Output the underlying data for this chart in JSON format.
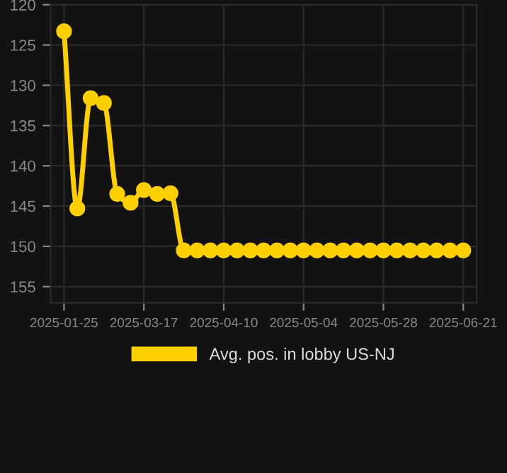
{
  "chart_data": {
    "type": "line",
    "categories": [
      "2025-01-25",
      null,
      null,
      null,
      null,
      null,
      "2025-03-17",
      null,
      null,
      null,
      null,
      null,
      "2025-04-10",
      null,
      null,
      null,
      null,
      null,
      "2025-05-04",
      null,
      null,
      null,
      null,
      null,
      "2025-05-28",
      null,
      null,
      null,
      null,
      null,
      "2025-06-21"
    ],
    "series": [
      {
        "name": "Avg. pos. in lobby US-NJ",
        "color": "#ffd000",
        "values": [
          123.3,
          145.3,
          131.6,
          132.2,
          143.5,
          144.6,
          143.0,
          143.5,
          143.4,
          150.5,
          150.5,
          150.5,
          150.5,
          150.5,
          150.5,
          150.5,
          150.5,
          150.5,
          150.5,
          150.5,
          150.5,
          150.5,
          150.5,
          150.5,
          150.5,
          150.5,
          150.5,
          150.5,
          150.5,
          150.5,
          150.5
        ]
      }
    ],
    "ylim": [
      157,
      120
    ],
    "yticks": [
      120,
      125,
      130,
      135,
      140,
      145,
      150,
      155
    ],
    "grid": true,
    "legend": "bottom",
    "marker": "circle",
    "line_style": "solid"
  }
}
